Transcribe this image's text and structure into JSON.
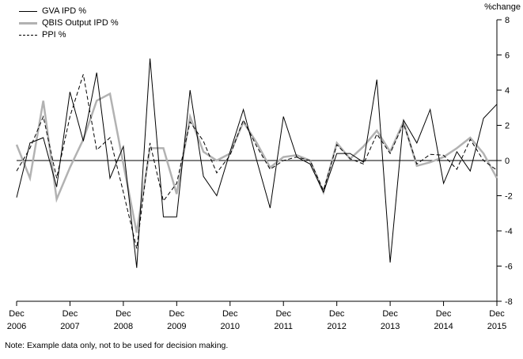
{
  "colors": {
    "line_black": "#000000",
    "line_gray": "#b2b2b2",
    "background": "#ffffff"
  },
  "chart_data": {
    "type": "line",
    "title": "",
    "ylabel_right": "%change",
    "ylim": [
      -8,
      8
    ],
    "ytick_labels": [
      "8",
      "6",
      "4",
      "2",
      "0",
      "-2",
      "-4",
      "-6",
      "-8"
    ],
    "ytick_values": [
      8,
      6,
      4,
      2,
      0,
      -2,
      -4,
      -6,
      -8
    ],
    "xtick_labels": [
      {
        "line1": "Dec",
        "line2": "2006"
      },
      {
        "line1": "Dec",
        "line2": "2007"
      },
      {
        "line1": "Dec",
        "line2": "2008"
      },
      {
        "line1": "Dec",
        "line2": "2009"
      },
      {
        "line1": "Dec",
        "line2": "2010"
      },
      {
        "line1": "Dec",
        "line2": "2011"
      },
      {
        "line1": "Dec",
        "line2": "2012"
      },
      {
        "line1": "Dec",
        "line2": "2013"
      },
      {
        "line1": "Dec",
        "line2": "2014"
      },
      {
        "line1": "Dec",
        "line2": "2015"
      }
    ],
    "quarters_per_xtick": 4,
    "x_frequency": "quarterly",
    "zero_line": true,
    "legend_position": "top-left",
    "grid": false,
    "series": [
      {
        "name": "GVA IPD %",
        "color": "#000000",
        "style": "solid",
        "width": 1,
        "values": [
          -2.1,
          1.0,
          1.3,
          -1.5,
          3.9,
          1.1,
          5.0,
          -1.0,
          0.8,
          -6.1,
          5.8,
          -3.2,
          -3.2,
          4.0,
          -0.9,
          -2.0,
          0.5,
          2.9,
          0.0,
          -2.7,
          2.5,
          0.2,
          -0.2,
          -1.8,
          0.4,
          0.4,
          -0.1,
          4.6,
          -5.8,
          2.3,
          1.0,
          2.9,
          -1.3,
          0.5,
          -0.6,
          2.4,
          3.2
        ]
      },
      {
        "name": "QBIS Output IPD %",
        "color": "#b2b2b2",
        "style": "solid",
        "width": 2.5,
        "values": [
          0.9,
          -1.0,
          3.4,
          -2.2,
          -0.4,
          1.2,
          3.4,
          3.8,
          -0.2,
          -4.1,
          0.7,
          0.7,
          -1.9,
          2.5,
          0.5,
          0.0,
          0.4,
          2.2,
          1.0,
          -0.4,
          0.2,
          0.3,
          0.0,
          -1.8,
          1.0,
          0.1,
          0.8,
          1.7,
          0.5,
          2.2,
          -0.3,
          -0.1,
          0.2,
          0.7,
          1.3,
          0.4,
          -1.0
        ]
      },
      {
        "name": "PPI %",
        "color": "#000000",
        "style": "dashed",
        "width": 1,
        "values": [
          -0.6,
          0.7,
          2.5,
          -1.0,
          2.5,
          4.9,
          0.6,
          1.3,
          -1.8,
          -5.0,
          1.0,
          -2.3,
          -1.3,
          2.2,
          1.1,
          -0.7,
          0.3,
          2.3,
          0.8,
          -0.5,
          0.0,
          0.2,
          0.0,
          -1.7,
          0.9,
          0.1,
          -0.2,
          1.5,
          0.4,
          2.1,
          -0.2,
          0.35,
          0.3,
          -0.5,
          1.2,
          0.0,
          -0.55
        ]
      }
    ]
  },
  "note": "Note: Example data only, not to be used for decision making."
}
